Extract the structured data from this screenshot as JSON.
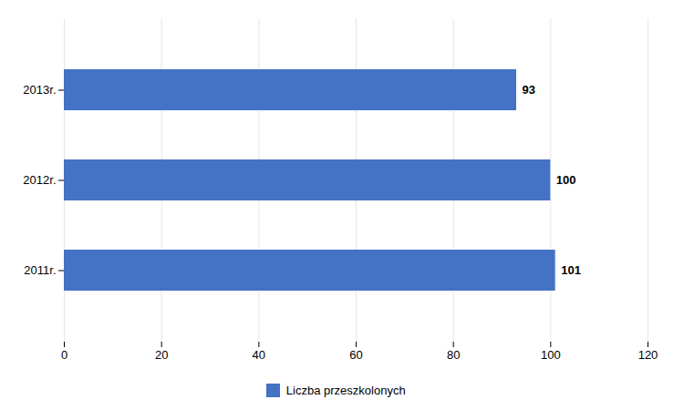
{
  "chart_data": {
    "type": "bar",
    "orientation": "horizontal",
    "categories": [
      "2011r.",
      "2012r.",
      "2013r."
    ],
    "series": [
      {
        "name": "Liczba przeszkolonych",
        "color": "#4472C4",
        "values": [
          101,
          100,
          93
        ]
      }
    ],
    "xlim": [
      0,
      120
    ],
    "xticks": [
      0,
      20,
      40,
      60,
      80,
      100,
      120
    ],
    "grid": true,
    "data_labels": true,
    "legend": "bottom"
  }
}
